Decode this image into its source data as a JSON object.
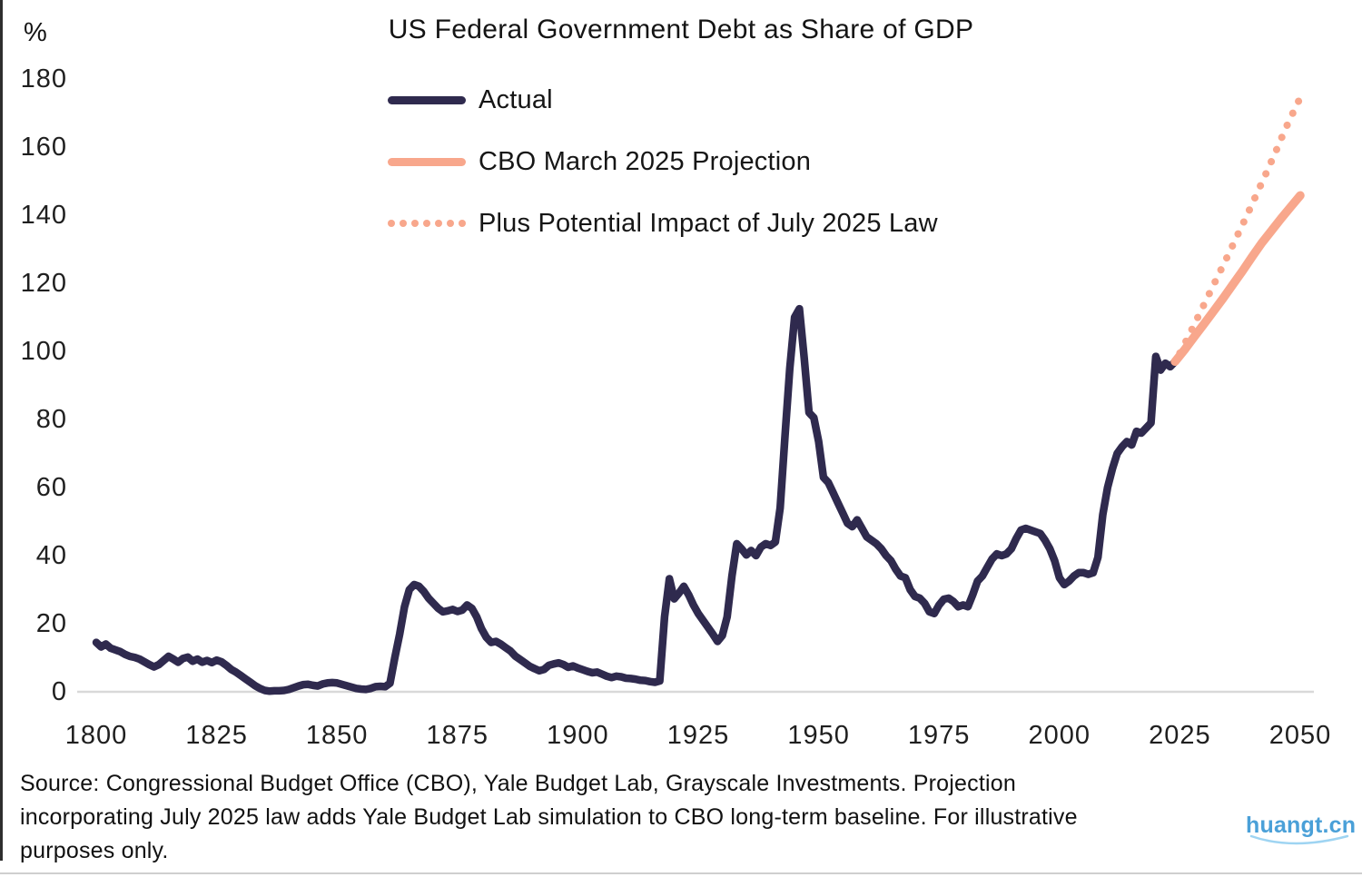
{
  "chart_data": {
    "type": "line",
    "title": "US Federal Government Debt as Share of GDP",
    "ylabel": "%",
    "xlabel": "",
    "xlim": [
      1800,
      2050
    ],
    "ylim": [
      0,
      180
    ],
    "xticks": [
      1800,
      1825,
      1850,
      1875,
      1900,
      1925,
      1950,
      1975,
      2000,
      2025,
      2050
    ],
    "yticks": [
      180,
      160,
      140,
      120,
      100,
      80,
      60,
      40,
      20,
      0
    ],
    "grid": false,
    "legend_position": "inside-top-left",
    "series": [
      {
        "name": "Actual",
        "style": "solid",
        "color": "#2f2a4e",
        "points": [
          [
            1800,
            14.5
          ],
          [
            1801,
            13.2
          ],
          [
            1802,
            14
          ],
          [
            1803,
            12.8
          ],
          [
            1804,
            12.3
          ],
          [
            1805,
            11.8
          ],
          [
            1806,
            11
          ],
          [
            1807,
            10.4
          ],
          [
            1808,
            10.1
          ],
          [
            1809,
            9.6
          ],
          [
            1810,
            8.8
          ],
          [
            1811,
            8
          ],
          [
            1812,
            7.3
          ],
          [
            1813,
            8
          ],
          [
            1814,
            9.2
          ],
          [
            1815,
            10.4
          ],
          [
            1816,
            9.6
          ],
          [
            1817,
            8.7
          ],
          [
            1818,
            9.8
          ],
          [
            1819,
            10.2
          ],
          [
            1820,
            9
          ],
          [
            1821,
            9.6
          ],
          [
            1822,
            8.7
          ],
          [
            1823,
            9.2
          ],
          [
            1824,
            8.6
          ],
          [
            1825,
            9.3
          ],
          [
            1826,
            8.8
          ],
          [
            1827,
            7.8
          ],
          [
            1828,
            6.6
          ],
          [
            1829,
            5.8
          ],
          [
            1830,
            4.8
          ],
          [
            1831,
            3.8
          ],
          [
            1832,
            2.8
          ],
          [
            1833,
            1.8
          ],
          [
            1834,
            1
          ],
          [
            1835,
            0.4
          ],
          [
            1836,
            0.2
          ],
          [
            1837,
            0.3
          ],
          [
            1838,
            0.3
          ],
          [
            1839,
            0.4
          ],
          [
            1840,
            0.7
          ],
          [
            1841,
            1.2
          ],
          [
            1842,
            1.7
          ],
          [
            1843,
            2.1
          ],
          [
            1844,
            2.2
          ],
          [
            1845,
            1.9
          ],
          [
            1846,
            1.7
          ],
          [
            1847,
            2.3
          ],
          [
            1848,
            2.6
          ],
          [
            1849,
            2.7
          ],
          [
            1850,
            2.6
          ],
          [
            1851,
            2.2
          ],
          [
            1852,
            1.8
          ],
          [
            1853,
            1.4
          ],
          [
            1854,
            1
          ],
          [
            1855,
            0.8
          ],
          [
            1856,
            0.7
          ],
          [
            1857,
            1
          ],
          [
            1858,
            1.5
          ],
          [
            1859,
            1.6
          ],
          [
            1860,
            1.5
          ],
          [
            1861,
            2.5
          ],
          [
            1862,
            10
          ],
          [
            1863,
            17
          ],
          [
            1864,
            25
          ],
          [
            1865,
            30
          ],
          [
            1866,
            31.5
          ],
          [
            1867,
            31
          ],
          [
            1868,
            29.5
          ],
          [
            1869,
            27.5
          ],
          [
            1870,
            26
          ],
          [
            1871,
            24.5
          ],
          [
            1872,
            23.5
          ],
          [
            1873,
            23.8
          ],
          [
            1874,
            24.2
          ],
          [
            1875,
            23.6
          ],
          [
            1876,
            24
          ],
          [
            1877,
            25.5
          ],
          [
            1878,
            24.5
          ],
          [
            1879,
            22
          ],
          [
            1880,
            18.5
          ],
          [
            1881,
            16
          ],
          [
            1882,
            14.5
          ],
          [
            1883,
            14.8
          ],
          [
            1884,
            14
          ],
          [
            1885,
            13
          ],
          [
            1886,
            12
          ],
          [
            1887,
            10.5
          ],
          [
            1888,
            9.5
          ],
          [
            1889,
            8.5
          ],
          [
            1890,
            7.5
          ],
          [
            1891,
            6.8
          ],
          [
            1892,
            6.2
          ],
          [
            1893,
            6.6
          ],
          [
            1894,
            7.8
          ],
          [
            1895,
            8.2
          ],
          [
            1896,
            8.5
          ],
          [
            1897,
            8
          ],
          [
            1898,
            7.2
          ],
          [
            1899,
            7.6
          ],
          [
            1900,
            7
          ],
          [
            1901,
            6.5
          ],
          [
            1902,
            6
          ],
          [
            1903,
            5.6
          ],
          [
            1904,
            5.8
          ],
          [
            1905,
            5.2
          ],
          [
            1906,
            4.6
          ],
          [
            1907,
            4.2
          ],
          [
            1908,
            4.6
          ],
          [
            1909,
            4.4
          ],
          [
            1910,
            4
          ],
          [
            1911,
            3.9
          ],
          [
            1912,
            3.7
          ],
          [
            1913,
            3.4
          ],
          [
            1914,
            3.3
          ],
          [
            1915,
            3
          ],
          [
            1916,
            2.8
          ],
          [
            1917,
            3.2
          ],
          [
            1918,
            22
          ],
          [
            1919,
            33.2
          ],
          [
            1920,
            27.3
          ],
          [
            1921,
            29
          ],
          [
            1922,
            31
          ],
          [
            1923,
            28.5
          ],
          [
            1924,
            25.5
          ],
          [
            1925,
            23
          ],
          [
            1926,
            21
          ],
          [
            1927,
            19
          ],
          [
            1928,
            17
          ],
          [
            1929,
            14.8
          ],
          [
            1930,
            16.5
          ],
          [
            1931,
            22
          ],
          [
            1932,
            34
          ],
          [
            1933,
            43.5
          ],
          [
            1934,
            42
          ],
          [
            1935,
            40.2
          ],
          [
            1936,
            41.5
          ],
          [
            1937,
            40
          ],
          [
            1938,
            42.5
          ],
          [
            1939,
            43.5
          ],
          [
            1940,
            43
          ],
          [
            1941,
            44
          ],
          [
            1942,
            54
          ],
          [
            1943,
            75
          ],
          [
            1944,
            95
          ],
          [
            1945,
            110
          ],
          [
            1946,
            112.5
          ],
          [
            1947,
            98
          ],
          [
            1948,
            82
          ],
          [
            1949,
            80.5
          ],
          [
            1950,
            73.5
          ],
          [
            1951,
            63
          ],
          [
            1952,
            61.5
          ],
          [
            1953,
            58.5
          ],
          [
            1954,
            55.5
          ],
          [
            1955,
            52.5
          ],
          [
            1956,
            49.5
          ],
          [
            1957,
            48.5
          ],
          [
            1958,
            50.5
          ],
          [
            1959,
            48
          ],
          [
            1960,
            45.5
          ],
          [
            1961,
            44.5
          ],
          [
            1962,
            43.5
          ],
          [
            1963,
            42
          ],
          [
            1964,
            40
          ],
          [
            1965,
            38.5
          ],
          [
            1966,
            36
          ],
          [
            1967,
            34
          ],
          [
            1968,
            33.5
          ],
          [
            1969,
            30
          ],
          [
            1970,
            28
          ],
          [
            1971,
            27.5
          ],
          [
            1972,
            26
          ],
          [
            1973,
            23.5
          ],
          [
            1974,
            23
          ],
          [
            1975,
            25.5
          ],
          [
            1976,
            27.2
          ],
          [
            1977,
            27.5
          ],
          [
            1978,
            26.5
          ],
          [
            1979,
            25
          ],
          [
            1980,
            25.5
          ],
          [
            1981,
            25
          ],
          [
            1982,
            28.5
          ],
          [
            1983,
            32.5
          ],
          [
            1984,
            34
          ],
          [
            1985,
            36.5
          ],
          [
            1986,
            39
          ],
          [
            1987,
            40.5
          ],
          [
            1988,
            40
          ],
          [
            1989,
            40.5
          ],
          [
            1990,
            42
          ],
          [
            1991,
            45
          ],
          [
            1992,
            47.5
          ],
          [
            1993,
            48
          ],
          [
            1994,
            47.5
          ],
          [
            1995,
            47
          ],
          [
            1996,
            46.5
          ],
          [
            1997,
            44.5
          ],
          [
            1998,
            42
          ],
          [
            1999,
            38.5
          ],
          [
            2000,
            33.5
          ],
          [
            2001,
            31.5
          ],
          [
            2002,
            32.5
          ],
          [
            2003,
            34
          ],
          [
            2004,
            35
          ],
          [
            2005,
            35
          ],
          [
            2006,
            34.5
          ],
          [
            2007,
            35
          ],
          [
            2008,
            39.5
          ],
          [
            2009,
            52
          ],
          [
            2010,
            60
          ],
          [
            2011,
            65.5
          ],
          [
            2012,
            70
          ],
          [
            2013,
            72
          ],
          [
            2014,
            73.5
          ],
          [
            2015,
            72.5
          ],
          [
            2016,
            76.5
          ],
          [
            2017,
            76
          ],
          [
            2018,
            77.5
          ],
          [
            2019,
            79
          ],
          [
            2020,
            98.5
          ],
          [
            2021,
            94.5
          ],
          [
            2022,
            96.5
          ],
          [
            2023,
            95.5
          ],
          [
            2024,
            97
          ]
        ]
      },
      {
        "name": "CBO March 2025 Projection",
        "style": "solid",
        "color": "#f8a78c",
        "points": [
          [
            2024,
            97
          ],
          [
            2026,
            100.5
          ],
          [
            2028,
            104.3
          ],
          [
            2030,
            108
          ],
          [
            2032,
            111.8
          ],
          [
            2034,
            115.6
          ],
          [
            2036,
            119.6
          ],
          [
            2038,
            123.6
          ],
          [
            2040,
            127.8
          ],
          [
            2042,
            131.8
          ],
          [
            2044,
            135.4
          ],
          [
            2046,
            139
          ],
          [
            2048,
            142.4
          ],
          [
            2050,
            145.8
          ]
        ]
      },
      {
        "name": "Plus Potential Impact of July 2025 Law",
        "style": "dotted",
        "color": "#f8a78c",
        "points": [
          [
            2025,
            99.5
          ],
          [
            2027,
            105
          ],
          [
            2029,
            110.8
          ],
          [
            2031,
            116.6
          ],
          [
            2033,
            122.4
          ],
          [
            2035,
            128.2
          ],
          [
            2037,
            134.2
          ],
          [
            2039,
            140.2
          ],
          [
            2041,
            146.4
          ],
          [
            2043,
            152.6
          ],
          [
            2045,
            159
          ],
          [
            2047,
            165.6
          ],
          [
            2049,
            171.6
          ],
          [
            2050,
            174.5
          ]
        ]
      }
    ]
  },
  "footer": {
    "source_lines": [
      "Source: Congressional Budget Office (CBO), Yale Budget Lab, Grayscale Investments. Projection",
      "incorporating July 2025 law adds Yale Budget Lab simulation to CBO long-term baseline. For illustrative",
      "purposes only."
    ],
    "watermark": "huangt.cn"
  },
  "colors": {
    "actual_line": "#2f2a4e",
    "projection_line": "#f8a78c",
    "zero_axis_line": "#d9d9d9",
    "text": "#1b1b1b",
    "watermark_blue": "#4aa0d8",
    "left_border": "#2e2e2e"
  }
}
